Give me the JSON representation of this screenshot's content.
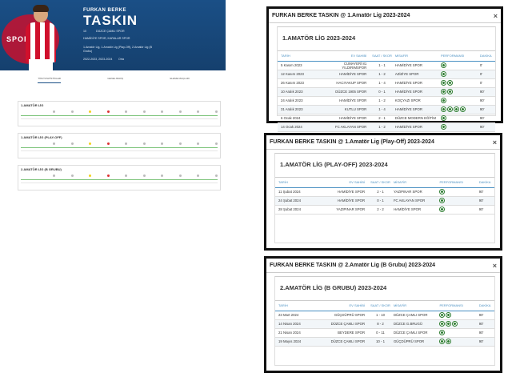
{
  "profile": {
    "first_name": "FURKAN BERKE",
    "last_name": "TASKIN",
    "club_logo_text": "SPOR KL",
    "number_label": "10",
    "club": "DÜZCE ÇAMLI SPOR",
    "clubs_line": "HAMİDİYE SPOR, KARALAR SPOR",
    "leagues_line": "1.Amatör Lig, 1.Amatör Lig (Play-Off), 2.Amatör Lig (B Grubu)",
    "seasons_line": "2022-2023, 2023-2024",
    "position_label": "Orta",
    "tabs": [
      "TÜM İSTATİSTİKLER",
      "GENEL BAKIŞ",
      "ELEME MAÇLARI"
    ],
    "mini_tables": [
      {
        "title": "1.AMATÖR LİG"
      },
      {
        "title": "1.AMATÖR LİG (PLAY-OFF)"
      },
      {
        "title": "2.AMATÖR LİG (B GRUBU)"
      }
    ]
  },
  "columns": {
    "date": "TARİH",
    "home": "EV SAHİBİ",
    "time": "SAAT / SKOR",
    "away": "MİSAFİR",
    "perf": "PERFORMANSI",
    "minute": "DAKİKA"
  },
  "modals": [
    {
      "title": "FURKAN BERKE TASKIN @ 1.Amatör Lig 2023-2024",
      "close": "×",
      "subtitle": "1.AMATÖR LİG 2023-2024",
      "rows": [
        {
          "date": "5 Kasım 2023",
          "home": "CUMAYERİ 81 YILDIRIMSPOR",
          "score": "1 - 1",
          "away": "HAMİDİYE SPOR",
          "balls": 1,
          "min": "0'"
        },
        {
          "date": "12 Kasım 2023",
          "home": "HAMİDİYE SPOR",
          "score": "1 - 2",
          "away": "AZİZİYE SPOR",
          "balls": 1,
          "min": "0'"
        },
        {
          "date": "26 Kasım 2023",
          "home": "HACIYAKUP SPOR",
          "score": "1 - 4",
          "away": "HAMİDİYE SPOR",
          "balls": 2,
          "min": "0'"
        },
        {
          "date": "10 Aralık 2023",
          "home": "DÜZCE 1905 SPOR",
          "score": "0 - 1",
          "away": "HAMİDİYE SPOR",
          "balls": 2,
          "min": "90'"
        },
        {
          "date": "24 Aralık 2023",
          "home": "HAMİDİYE SPOR",
          "score": "1 - 2",
          "away": "KOÇYAZI SPOR",
          "balls": 1,
          "min": "90'"
        },
        {
          "date": "31 Aralık 2023",
          "home": "KUTLU SPOR",
          "score": "1 - 4",
          "away": "HAMİDİYE SPOR",
          "balls": 4,
          "min": "90'"
        },
        {
          "date": "6 Ocak 2024",
          "home": "HAMİDİYE SPOR",
          "score": "2 - 1",
          "away": "DÜZCE MODERN EĞİTİM",
          "balls": 1,
          "min": "90'"
        },
        {
          "date": "14 Ocak 2024",
          "home": "FC AKLAYAN SPOR",
          "score": "1 - 2",
          "away": "HAMİDİYE SPOR",
          "balls": 1,
          "min": "90'"
        }
      ]
    },
    {
      "title": "FURKAN BERKE TASKIN @ 1.Amatör Lig (Play-Off) 2023-2024",
      "close": "×",
      "subtitle": "1.AMATÖR LİG (PLAY-OFF) 2023-2024",
      "rows": [
        {
          "date": "11 Şubat 2024",
          "home": "HAMİDİYE SPOR",
          "score": "2 - 1",
          "away": "YAZIPINAR SPOR",
          "balls": 1,
          "min": "90'"
        },
        {
          "date": "24 Şubat 2024",
          "home": "HAMİDİYE SPOR",
          "score": "0 - 1",
          "away": "FC AKLAYAN SPOR",
          "balls": 1,
          "min": "90'"
        },
        {
          "date": "28 Şubat 2024",
          "home": "YAZIPINAR SPOR",
          "score": "2 - 2",
          "away": "HAMİDİYE SPOR",
          "balls": 1,
          "min": "90'"
        }
      ]
    },
    {
      "title": "FURKAN BERKE TASKIN @ 2.Amatör Lig (B Grubu) 2023-2024",
      "close": "×",
      "subtitle": "2.AMATÖR LİG (B GRUBU) 2023-2024",
      "rows": [
        {
          "date": "23 Mart 2024",
          "home": "GÜÇDÜPRÜ SPOR",
          "score": "1 - 10",
          "away": "DÜZCE ÇAMLI SPOR",
          "balls": 2,
          "min": "90'"
        },
        {
          "date": "14 Nisan 2024",
          "home": "DÜZCE ÇAMLI SPOR",
          "score": "8 - 2",
          "away": "DÜZCE G.BRUGÜ",
          "balls": 3,
          "min": "90'"
        },
        {
          "date": "21 Nisan 2024",
          "home": "BEYDERE SPOR",
          "score": "0 - 11",
          "away": "DÜZCE ÇAMLI SPOR",
          "balls": 1,
          "min": "90'"
        },
        {
          "date": "19 Mayıs 2024",
          "home": "DÜZCE ÇAMLI SPOR",
          "score": "10 - 1",
          "away": "GÜÇDÜPRÜ SPOR",
          "balls": 2,
          "min": "90'"
        }
      ]
    }
  ]
}
